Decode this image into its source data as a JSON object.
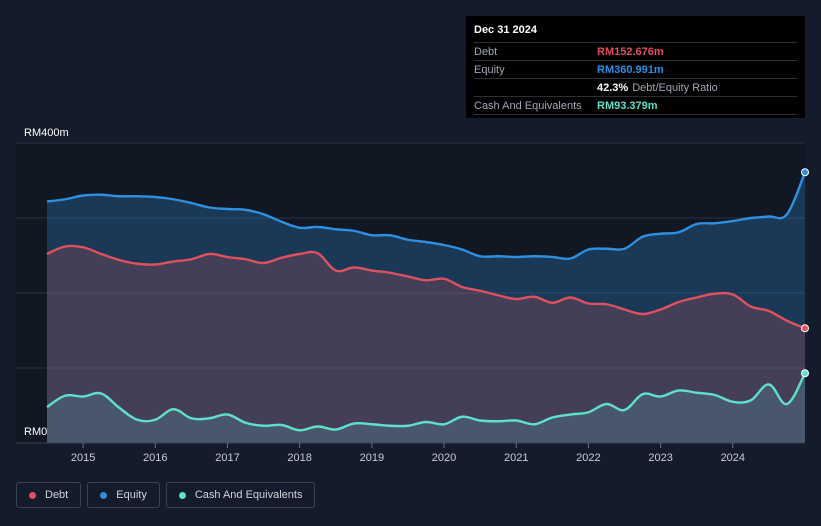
{
  "tooltip": {
    "date": "Dec 31 2024",
    "debt_label": "Debt",
    "debt_value": "RM152.676m",
    "equity_label": "Equity",
    "equity_value": "RM360.991m",
    "ratio_value": "42.3%",
    "ratio_label": "Debt/Equity Ratio",
    "cash_label": "Cash And Equivalents",
    "cash_value": "RM93.379m"
  },
  "legend": {
    "debt": "Debt",
    "equity": "Equity",
    "cash": "Cash And Equivalents"
  },
  "colors": {
    "debt": "#e0505d",
    "equity": "#2f8fe0",
    "cash": "#5fe0cc"
  },
  "chart_data": {
    "type": "area",
    "title": "",
    "xlabel": "",
    "ylabel": "",
    "y_tick_labels": [
      "RM0",
      "RM400m"
    ],
    "ylim": [
      0,
      400
    ],
    "xlim": [
      2014.5,
      2025.0
    ],
    "x_tick_labels": [
      "2015",
      "2016",
      "2017",
      "2018",
      "2019",
      "2020",
      "2021",
      "2022",
      "2023",
      "2024"
    ],
    "x_ticks": [
      2015,
      2016,
      2017,
      2018,
      2019,
      2020,
      2021,
      2022,
      2023,
      2024
    ],
    "grid": true,
    "legend_position": "bottom-left",
    "series": [
      {
        "name": "Equity",
        "x": [
          2014.5,
          2014.75,
          2015.0,
          2015.25,
          2015.5,
          2015.75,
          2016.0,
          2016.25,
          2016.5,
          2016.75,
          2017.0,
          2017.25,
          2017.5,
          2017.75,
          2018.0,
          2018.25,
          2018.5,
          2018.75,
          2019.0,
          2019.25,
          2019.5,
          2019.75,
          2020.0,
          2020.25,
          2020.5,
          2020.75,
          2021.0,
          2021.25,
          2021.5,
          2021.75,
          2022.0,
          2022.25,
          2022.5,
          2022.75,
          2023.0,
          2023.25,
          2023.5,
          2023.75,
          2024.0,
          2024.25,
          2024.5,
          2024.75,
          2025.0
        ],
        "values": [
          322,
          325,
          330,
          331,
          329,
          329,
          328,
          325,
          320,
          314,
          312,
          311,
          305,
          295,
          287,
          288,
          285,
          283,
          277,
          277,
          271,
          268,
          264,
          258,
          249,
          249,
          248,
          249,
          248,
          246,
          258,
          259,
          259,
          275,
          279,
          281,
          292,
          293,
          296,
          300,
          302,
          305,
          361
        ]
      },
      {
        "name": "Debt",
        "x": [
          2014.5,
          2014.75,
          2015.0,
          2015.25,
          2015.5,
          2015.75,
          2016.0,
          2016.25,
          2016.5,
          2016.75,
          2017.0,
          2017.25,
          2017.5,
          2017.75,
          2018.0,
          2018.25,
          2018.5,
          2018.75,
          2019.0,
          2019.25,
          2019.5,
          2019.75,
          2020.0,
          2020.25,
          2020.5,
          2020.75,
          2021.0,
          2021.25,
          2021.5,
          2021.75,
          2022.0,
          2022.25,
          2022.5,
          2022.75,
          2023.0,
          2023.25,
          2023.5,
          2023.75,
          2024.0,
          2024.25,
          2024.5,
          2024.75,
          2025.0
        ],
        "values": [
          252,
          262,
          261,
          252,
          244,
          239,
          238,
          242,
          245,
          252,
          248,
          245,
          240,
          247,
          252,
          253,
          230,
          234,
          230,
          227,
          222,
          217,
          219,
          208,
          203,
          197,
          192,
          195,
          187,
          194,
          186,
          185,
          178,
          172,
          178,
          188,
          194,
          199,
          198,
          182,
          176,
          163,
          153
        ]
      },
      {
        "name": "Cash And Equivalents",
        "x": [
          2014.5,
          2014.75,
          2015.0,
          2015.25,
          2015.5,
          2015.75,
          2016.0,
          2016.25,
          2016.5,
          2016.75,
          2017.0,
          2017.25,
          2017.5,
          2017.75,
          2018.0,
          2018.25,
          2018.5,
          2018.75,
          2019.0,
          2019.25,
          2019.5,
          2019.75,
          2020.0,
          2020.25,
          2020.5,
          2020.75,
          2021.0,
          2021.25,
          2021.5,
          2021.75,
          2022.0,
          2022.25,
          2022.5,
          2022.75,
          2023.0,
          2023.25,
          2023.5,
          2023.75,
          2024.0,
          2024.25,
          2024.5,
          2024.75,
          2025.0
        ],
        "values": [
          48,
          63,
          62,
          66,
          47,
          31,
          31,
          45,
          33,
          33,
          38,
          27,
          23,
          24,
          17,
          22,
          18,
          26,
          25,
          23,
          23,
          28,
          25,
          35,
          30,
          29,
          30,
          25,
          34,
          38,
          41,
          52,
          44,
          65,
          62,
          70,
          67,
          64,
          55,
          57,
          78,
          52,
          93
        ]
      }
    ]
  }
}
